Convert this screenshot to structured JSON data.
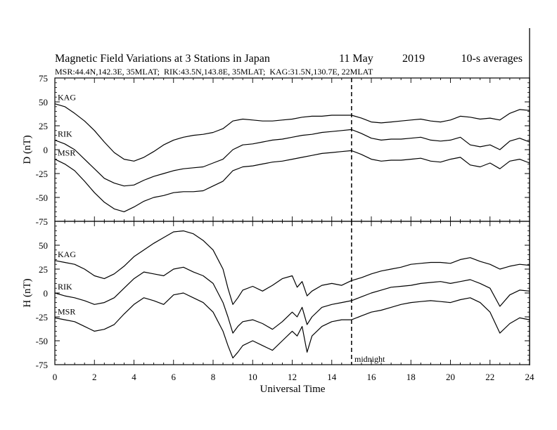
{
  "chart_data": [
    {
      "type": "line",
      "panel": "D",
      "title": "Magnetic Field Variations at 3 Stations in Japan",
      "date_label": "11 May",
      "year_label": "2019",
      "averaging_label": "10-s averages",
      "subtitle": "MSR:44.4N,142.3E, 35MLAT;  RIK:43.5N,143.8E, 35MLAT;  KAG:31.5N,130.7E, 22MLAT",
      "ylabel": "D (nT)",
      "xlim": [
        0,
        24
      ],
      "ylim": [
        -75,
        75
      ],
      "yticks": [
        "75",
        "50",
        "25",
        "0",
        "-25",
        "-50",
        "-75"
      ],
      "x": [
        0,
        0.5,
        1,
        1.5,
        2,
        2.5,
        3,
        3.5,
        4,
        4.5,
        5,
        5.5,
        6,
        6.5,
        7,
        7.5,
        8,
        8.5,
        9,
        9.5,
        10,
        10.5,
        11,
        11.5,
        12,
        12.5,
        13,
        13.5,
        14,
        14.5,
        15,
        15.5,
        16,
        16.5,
        17,
        17.5,
        18,
        18.5,
        19,
        19.5,
        20,
        20.5,
        21,
        21.5,
        22,
        22.5,
        23,
        23.5,
        24
      ],
      "series": [
        {
          "name": "KAG",
          "values": [
            48,
            45,
            38,
            30,
            20,
            8,
            -3,
            -10,
            -12,
            -8,
            -2,
            5,
            10,
            13,
            15,
            16,
            18,
            22,
            30,
            32,
            31,
            30,
            30,
            31,
            32,
            34,
            35,
            35,
            36,
            36,
            36,
            33,
            29,
            28,
            29,
            30,
            31,
            32,
            30,
            29,
            31,
            35,
            34,
            32,
            33,
            31,
            38,
            42,
            41
          ]
        },
        {
          "name": "RIK",
          "values": [
            10,
            6,
            0,
            -10,
            -20,
            -30,
            -35,
            -38,
            -37,
            -32,
            -28,
            -25,
            -22,
            -20,
            -19,
            -18,
            -14,
            -10,
            0,
            5,
            6,
            8,
            10,
            11,
            13,
            15,
            16,
            18,
            19,
            20,
            21,
            17,
            12,
            10,
            11,
            11,
            12,
            13,
            10,
            9,
            10,
            13,
            5,
            3,
            5,
            0,
            9,
            12,
            8
          ]
        },
        {
          "name": "MSR",
          "values": [
            -10,
            -15,
            -22,
            -33,
            -45,
            -55,
            -62,
            -65,
            -60,
            -54,
            -50,
            -48,
            -45,
            -44,
            -44,
            -43,
            -38,
            -33,
            -22,
            -18,
            -17,
            -15,
            -13,
            -12,
            -10,
            -8,
            -6,
            -4,
            -3,
            -2,
            -1,
            -5,
            -10,
            -12,
            -11,
            -11,
            -10,
            -9,
            -12,
            -13,
            -10,
            -8,
            -16,
            -18,
            -14,
            -20,
            -12,
            -10,
            -14
          ]
        }
      ],
      "annotations": {
        "dashed_line_x": 15
      }
    },
    {
      "type": "line",
      "panel": "H",
      "ylabel": "H (nT)",
      "xlabel": "Universal Time",
      "xlim": [
        0,
        24
      ],
      "ylim": [
        -75,
        75
      ],
      "xticks": [
        "0",
        "2",
        "4",
        "6",
        "8",
        "10",
        "12",
        "14",
        "16",
        "18",
        "20",
        "22",
        "24"
      ],
      "yticks": [
        "50",
        "25",
        "0",
        "-25",
        "-50",
        "-75"
      ],
      "x": [
        0,
        0.5,
        1,
        1.5,
        2,
        2.5,
        3,
        3.5,
        4,
        4.5,
        5,
        5.5,
        6,
        6.5,
        7,
        7.5,
        8,
        8.5,
        8.75,
        9,
        9.25,
        9.5,
        10,
        10.5,
        11,
        11.5,
        12,
        12.25,
        12.5,
        12.75,
        13,
        13.5,
        14,
        14.5,
        15,
        15.5,
        16,
        16.5,
        17,
        17.5,
        18,
        18.5,
        19,
        19.5,
        20,
        20.5,
        21,
        21.5,
        22,
        22.5,
        23,
        23.5,
        24
      ],
      "series": [
        {
          "name": "KAG",
          "values": [
            34,
            32,
            30,
            25,
            18,
            15,
            20,
            28,
            38,
            45,
            52,
            58,
            64,
            65,
            62,
            55,
            45,
            25,
            5,
            -12,
            -5,
            3,
            7,
            2,
            8,
            15,
            18,
            6,
            12,
            -3,
            2,
            8,
            10,
            8,
            13,
            16,
            20,
            23,
            25,
            27,
            30,
            31,
            32,
            32,
            31,
            35,
            37,
            33,
            30,
            25,
            28,
            30,
            29
          ]
        },
        {
          "name": "RIK",
          "values": [
            0,
            -3,
            -5,
            -8,
            -12,
            -10,
            -5,
            5,
            15,
            22,
            20,
            18,
            25,
            27,
            22,
            18,
            10,
            -10,
            -25,
            -42,
            -35,
            -30,
            -28,
            -32,
            -38,
            -30,
            -20,
            -25,
            -15,
            -33,
            -25,
            -15,
            -12,
            -10,
            -8,
            -4,
            0,
            3,
            6,
            7,
            8,
            10,
            11,
            12,
            10,
            12,
            14,
            10,
            5,
            -14,
            -2,
            3,
            2
          ]
        },
        {
          "name": "MSR",
          "values": [
            -26,
            -28,
            -30,
            -35,
            -40,
            -38,
            -33,
            -22,
            -12,
            -5,
            -8,
            -12,
            -2,
            0,
            -5,
            -10,
            -20,
            -40,
            -55,
            -68,
            -62,
            -55,
            -50,
            -55,
            -60,
            -50,
            -40,
            -45,
            -35,
            -62,
            -45,
            -35,
            -30,
            -28,
            -28,
            -24,
            -20,
            -18,
            -15,
            -12,
            -10,
            -9,
            -8,
            -9,
            -10,
            -7,
            -5,
            -10,
            -20,
            -42,
            -32,
            -26,
            -28
          ]
        }
      ],
      "annotations": {
        "dashed_line_x": 15,
        "dashed_line_label": "midnight"
      }
    }
  ]
}
